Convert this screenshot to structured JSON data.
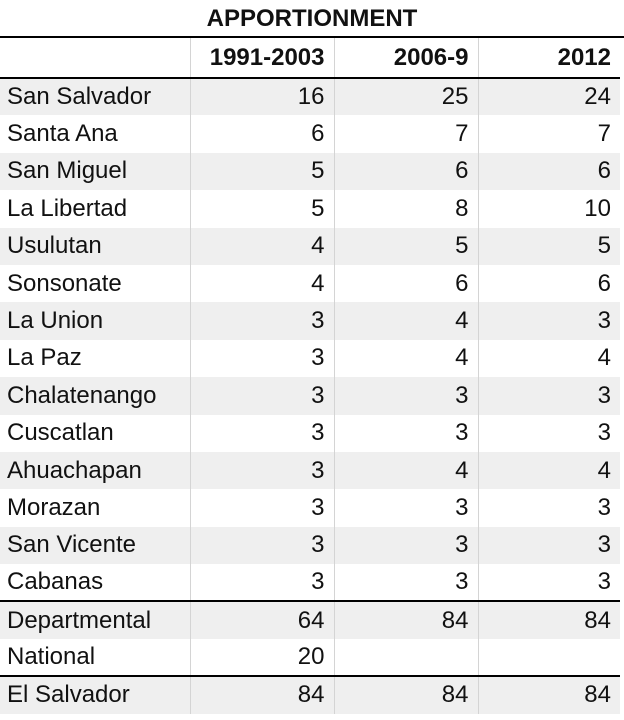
{
  "title": "APPORTIONMENT",
  "columns": [
    "",
    "1991-2003",
    "2006-9",
    "2012"
  ],
  "rows": [
    {
      "name": "San Salvador",
      "v1": "16",
      "v2": "25",
      "v3": "24"
    },
    {
      "name": "Santa Ana",
      "v1": "6",
      "v2": "7",
      "v3": "7"
    },
    {
      "name": "San Miguel",
      "v1": "5",
      "v2": "6",
      "v3": "6"
    },
    {
      "name": "La Libertad",
      "v1": "5",
      "v2": "8",
      "v3": "10"
    },
    {
      "name": "Usulutan",
      "v1": "4",
      "v2": "5",
      "v3": "5"
    },
    {
      "name": "Sonsonate",
      "v1": "4",
      "v2": "6",
      "v3": "6"
    },
    {
      "name": "La Union",
      "v1": "3",
      "v2": "4",
      "v3": "3"
    },
    {
      "name": "La Paz",
      "v1": "3",
      "v2": "4",
      "v3": "4"
    },
    {
      "name": "Chalatenango",
      "v1": "3",
      "v2": "3",
      "v3": "3"
    },
    {
      "name": "Cuscatlan",
      "v1": "3",
      "v2": "3",
      "v3": "3"
    },
    {
      "name": "Ahuachapan",
      "v1": "3",
      "v2": "4",
      "v3": "4"
    },
    {
      "name": "Morazan",
      "v1": "3",
      "v2": "3",
      "v3": "3"
    },
    {
      "name": "San Vicente",
      "v1": "3",
      "v2": "3",
      "v3": "3"
    },
    {
      "name": "Cabanas",
      "v1": "3",
      "v2": "3",
      "v3": "3"
    }
  ],
  "summary": [
    {
      "name": "Departmental",
      "v1": "64",
      "v2": "84",
      "v3": "84"
    },
    {
      "name": "National",
      "v1": "20",
      "v2": "",
      "v3": ""
    }
  ],
  "total": {
    "name": "El Salvador",
    "v1": "84",
    "v2": "84",
    "v3": "84"
  }
}
